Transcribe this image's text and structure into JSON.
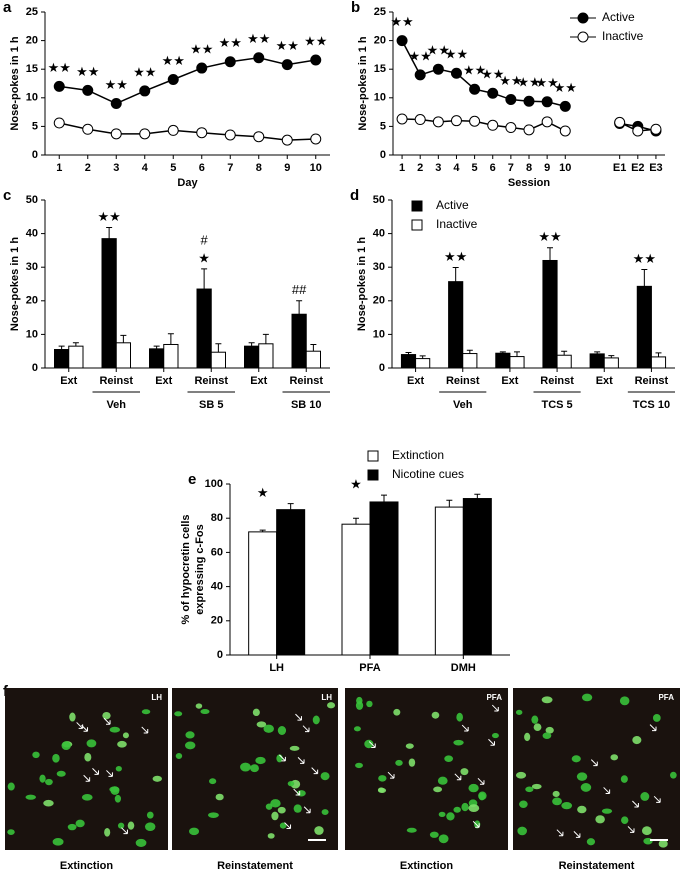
{
  "chart_data": [
    {
      "type": "line",
      "panel": "a",
      "categories": [
        "1",
        "2",
        "3",
        "4",
        "5",
        "6",
        "7",
        "8",
        "9",
        "10"
      ],
      "series": [
        {
          "color": "#000000",
          "values": [
            12,
            11.3,
            9,
            11.2,
            13.2,
            15.2,
            16.3,
            17,
            15.8,
            16.6
          ]
        },
        {
          "color": "#ffffff",
          "values": [
            5.6,
            4.5,
            3.7,
            3.7,
            4.3,
            3.9,
            3.5,
            3.2,
            2.6,
            2.8
          ]
        }
      ],
      "star_labels": [
        "★★",
        "★★",
        "★★",
        "★★",
        "★★",
        "★★",
        "★★",
        "★★",
        "★★",
        "★★"
      ],
      "ylim": [
        0,
        25
      ],
      "yticks": [
        0,
        5,
        10,
        15,
        20,
        25
      ],
      "ylabel": [
        "Nose-pokes  in 1 h"
      ],
      "xlabel": "Day"
    },
    {
      "type": "line",
      "panel": "b",
      "categories": [
        "1",
        "2",
        "3",
        "4",
        "5",
        "6",
        "7",
        "8",
        "9",
        "10",
        null,
        null,
        "E1",
        "E2",
        "E3"
      ],
      "series": [
        {
          "name": "Active",
          "color": "#000000",
          "values": [
            20,
            14,
            15,
            14.3,
            11.5,
            10.8,
            9.7,
            9.4,
            9.3,
            8.5,
            null,
            null,
            5.5,
            5,
            4.2
          ]
        },
        {
          "name": "Inactive",
          "color": "#ffffff",
          "values": [
            6.3,
            6.2,
            5.8,
            6,
            5.9,
            5.2,
            4.8,
            4.4,
            5.8,
            4.2,
            null,
            null,
            5.7,
            4.2,
            4.5
          ]
        }
      ],
      "star_labels": [
        "★★",
        "★★",
        "★★",
        "★★",
        "★★",
        "★★",
        "★★",
        "★★",
        "★★",
        "★★",
        null,
        null,
        null,
        null,
        null
      ],
      "ylim": [
        0,
        25
      ],
      "yticks": [
        0,
        5,
        10,
        15,
        20,
        25
      ],
      "ylabel": [
        "Nose-pokes  in 1 h"
      ],
      "xlabel": "Session",
      "legend": "upper right"
    },
    {
      "type": "bar",
      "panel": "c",
      "categories": [
        "Ext",
        "Reinst",
        "Ext",
        "Reinst",
        "Ext",
        "Reinst"
      ],
      "groups": [
        "Veh",
        "SB 5",
        "SB 10"
      ],
      "series": [
        {
          "color": "#000000",
          "values": [
            5.5,
            38.5,
            5.7,
            23.5,
            6.5,
            16
          ],
          "errors": [
            1,
            3.3,
            0.8,
            6,
            1,
            4
          ]
        },
        {
          "color": "#ffffff",
          "values": [
            6.5,
            7.5,
            7,
            4.7,
            7.2,
            5
          ],
          "errors": [
            1,
            2.2,
            3.2,
            2.5,
            2.8,
            2
          ]
        }
      ],
      "star_labels": [
        null,
        "★★",
        null,
        "★",
        null,
        null
      ],
      "hash_labels": [
        null,
        null,
        null,
        "#",
        null,
        "##"
      ],
      "ylim": [
        0,
        50
      ],
      "yticks": [
        0,
        10,
        20,
        30,
        40,
        50
      ],
      "ylabel": [
        "Nose-pokes  in 1 h"
      ]
    },
    {
      "type": "bar",
      "panel": "d",
      "categories": [
        "Ext",
        "Reinst",
        "Ext",
        "Reinst",
        "Ext",
        "Reinst"
      ],
      "groups": [
        "Veh",
        "TCS 5",
        "TCS 10"
      ],
      "series": [
        {
          "name": "Active",
          "color": "#000000",
          "values": [
            4,
            25.7,
            4.4,
            32,
            4.2,
            24.3
          ],
          "errors": [
            0.6,
            4.2,
            0.4,
            3.8,
            0.6,
            5
          ]
        },
        {
          "name": "Inactive",
          "color": "#ffffff",
          "values": [
            2.8,
            4.3,
            3.4,
            3.8,
            3,
            3.3
          ],
          "errors": [
            0.8,
            1,
            1.4,
            1.2,
            0.7,
            1.2
          ]
        }
      ],
      "star_labels": [
        null,
        "★★",
        null,
        "★★",
        null,
        "★★"
      ],
      "ylim": [
        0,
        50
      ],
      "yticks": [
        0,
        10,
        20,
        30,
        40,
        50
      ],
      "ylabel": [
        "Nose-pokes  in 1 h"
      ],
      "legend": "upper left"
    },
    {
      "type": "bar",
      "panel": "e",
      "categories": [
        "LH",
        "PFA",
        "DMH"
      ],
      "series": [
        {
          "name": "Extinction",
          "color": "#ffffff",
          "values": [
            72,
            76.5,
            86.5
          ],
          "errors": [
            1,
            3.5,
            4
          ]
        },
        {
          "name": "Nicotine cues",
          "color": "#000000",
          "values": [
            85,
            89.5,
            91.5
          ],
          "errors": [
            3.5,
            4,
            2.5
          ]
        }
      ],
      "star_labels": [
        "★",
        "★",
        null
      ],
      "ylim": [
        0,
        100
      ],
      "yticks": [
        0,
        20,
        40,
        60,
        80,
        100
      ],
      "ylabel": [
        "% of hypocretin cells",
        "expressing c-Fos"
      ],
      "legend": "top"
    }
  ],
  "images": {
    "panel": "f",
    "items": [
      {
        "tag": "LH",
        "caption": "Extinction"
      },
      {
        "tag": "LH",
        "caption": "Reinstatement"
      },
      {
        "tag": "PFA",
        "caption": "Extinction"
      },
      {
        "tag": "PFA",
        "caption": "Reinstatement"
      }
    ]
  }
}
